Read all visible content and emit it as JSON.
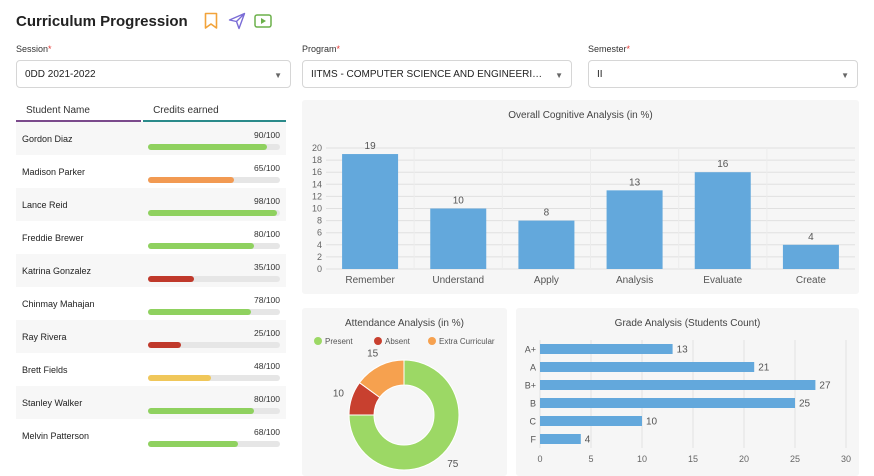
{
  "header": {
    "title": "Curriculum Progression"
  },
  "filters": {
    "session": {
      "label": "Session",
      "value": "0DD 2021-2022"
    },
    "program": {
      "label": "Program",
      "value": "IITMS - COMPUTER SCIENCE AND ENGINEERING - B.E...."
    },
    "semester": {
      "label": "Semester",
      "value": "II"
    }
  },
  "students_table": {
    "col_name": "Student Name",
    "col_credits": "Credits earned",
    "rows": [
      {
        "name": "Gordon Diaz",
        "credits": "90/100",
        "value": 90,
        "color": "#8fd15f"
      },
      {
        "name": "Madison Parker",
        "credits": "65/100",
        "value": 65,
        "color": "#f29a52"
      },
      {
        "name": "Lance Reid",
        "credits": "98/100",
        "value": 98,
        "color": "#8fd15f"
      },
      {
        "name": "Freddie Brewer",
        "credits": "80/100",
        "value": 80,
        "color": "#8fd15f"
      },
      {
        "name": "Katrina Gonzalez",
        "credits": "35/100",
        "value": 35,
        "color": "#c0392b"
      },
      {
        "name": "Chinmay Mahajan",
        "credits": "78/100",
        "value": 78,
        "color": "#8fd15f"
      },
      {
        "name": "Ray Rivera",
        "credits": "25/100",
        "value": 25,
        "color": "#c0392b"
      },
      {
        "name": "Brett Fields",
        "credits": "48/100",
        "value": 48,
        "color": "#f0c75a"
      },
      {
        "name": "Stanley Walker",
        "credits": "80/100",
        "value": 80,
        "color": "#8fd15f"
      },
      {
        "name": "Melvin Patterson",
        "credits": "68/100",
        "value": 68,
        "color": "#8fd15f"
      }
    ]
  },
  "chart_data": [
    {
      "type": "bar",
      "title": "Overall Cognitive Analysis (in %)",
      "categories": [
        "Remember",
        "Understand",
        "Apply",
        "Analysis",
        "Evaluate",
        "Create"
      ],
      "values": [
        19,
        10,
        8,
        13,
        16,
        4
      ],
      "ylim": [
        0,
        20
      ],
      "yticks": [
        "0",
        "2",
        "4",
        "6",
        "8",
        "10",
        "12",
        "14",
        "16",
        "18",
        "20"
      ],
      "color": "#63a8dc"
    },
    {
      "type": "pie",
      "title": "Attendance Analysis (in %)",
      "labels": [
        "Present",
        "Absent",
        "Extra Curricular"
      ],
      "values": [
        75,
        10,
        15
      ],
      "value_labels": [
        "75",
        "10",
        "15"
      ],
      "colors": [
        "#9cd865",
        "#c8402f",
        "#f6a14f"
      ]
    },
    {
      "type": "bar",
      "orientation": "horizontal",
      "title": "Grade Analysis (Students Count)",
      "categories": [
        "A+",
        "A",
        "B+",
        "B",
        "C",
        "F"
      ],
      "values": [
        13,
        21,
        27,
        25,
        10,
        4
      ],
      "xlim": [
        0,
        30
      ],
      "xticks": [
        "0",
        "5",
        "10",
        "15",
        "20",
        "25",
        "30"
      ],
      "color": "#63a8dc"
    }
  ],
  "icons": {
    "bookmark": "bookmark-icon",
    "send": "send-icon",
    "play": "play-icon"
  },
  "colors": {
    "bookmark": "#f2a33a",
    "send": "#7a6cd6",
    "play": "#6bb04a"
  }
}
